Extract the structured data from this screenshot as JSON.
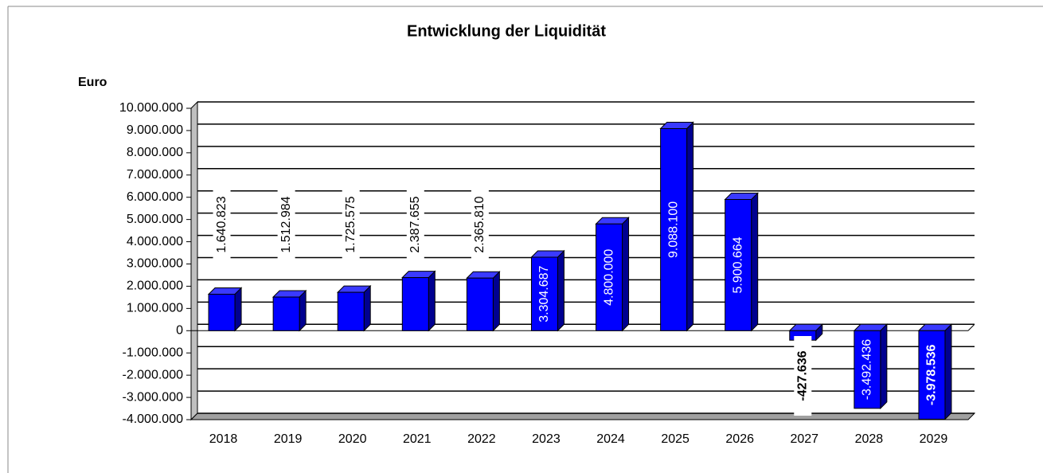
{
  "chart_data": {
    "type": "bar3d",
    "title": "Entwicklung der Liquidität",
    "y_axis_label": "Euro",
    "categories": [
      "2018",
      "2019",
      "2020",
      "2021",
      "2022",
      "2023",
      "2024",
      "2025",
      "2026",
      "2027",
      "2028",
      "2029"
    ],
    "values": [
      1640823,
      1512984,
      1725575,
      2387655,
      2365810,
      3304687,
      4800000,
      9088100,
      5900664,
      -427636,
      -3492436,
      -3978536
    ],
    "value_labels": [
      "1.640.823",
      "1.512.984",
      "1.725.575",
      "2.387.655",
      "2.365.810",
      "3.304.687",
      "4.800.000",
      "9.088.100",
      "5.900.664",
      "-427.636",
      "-3.492.436",
      "-3.978.536"
    ],
    "color": "#0000ff",
    "ylim": [
      -4000000,
      10000000
    ],
    "yticks": [
      {
        "value": -4000000,
        "label": "-4.000.000"
      },
      {
        "value": -3000000,
        "label": "-3.000.000"
      },
      {
        "value": -2000000,
        "label": "-2.000.000"
      },
      {
        "value": -1000000,
        "label": "-1.000.000"
      },
      0,
      {
        "value": 1000000,
        "label": "1.000.000"
      },
      {
        "value": 2000000,
        "label": "2.000.000"
      },
      {
        "value": 3000000,
        "label": "3.000.000"
      },
      {
        "value": 4000000,
        "label": "4.000.000"
      },
      {
        "value": 5000000,
        "label": "5.000.000"
      },
      {
        "value": 6000000,
        "label": "6.000.000"
      },
      {
        "value": 7000000,
        "label": "7.000.000"
      },
      {
        "value": 8000000,
        "label": "8.000.000"
      },
      {
        "value": 9000000,
        "label": "9.000.000"
      },
      {
        "value": 10000000,
        "label": "10.000.000"
      }
    ],
    "grid": true
  }
}
